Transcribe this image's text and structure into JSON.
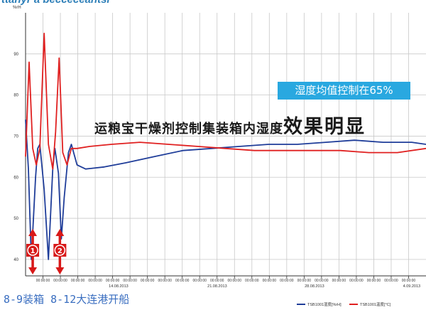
{
  "header": {
    "cut_title": "ttanyr a becceceantsr"
  },
  "annotations": {
    "callout": "湿度均值控制在65%",
    "headline_lead": "运粮宝干燥剂控制集装箱内湿度",
    "headline_strong": "效果明显",
    "bottom_note": "8-9装箱 8-12大连港开船"
  },
  "markers": [
    {
      "label": "①",
      "time": 0.5
    },
    {
      "label": "②",
      "time": 2.4
    }
  ],
  "colors": {
    "humidity": "#1f3d99",
    "temperature": "#e02020",
    "grid": "#c8c8c8",
    "callout": "#29a8e0",
    "marker": "#d81818"
  },
  "chart_data": {
    "type": "line",
    "ylabel": "%rH",
    "ylim": [
      36,
      100
    ],
    "yticks": [
      40,
      50,
      60,
      70,
      80,
      90
    ],
    "xlim": [
      0,
      28
    ],
    "grid": true,
    "legend_position": "bottom-right",
    "time_labels": [
      "00:00:00",
      "00:00:00",
      "00:00:00",
      "00:00:00",
      "00:00:00",
      "00:00:00",
      "00:00:00",
      "00:00:00",
      "00:00:00",
      "00:00:00",
      "00:00:00",
      "00:00:00",
      "00:00:00",
      "00:00:00",
      "00:00:00",
      "00:00:00",
      "00:00:00",
      "00:00:00",
      "00:00:00",
      "00:00:00",
      "00:00:00",
      "00:00:00"
    ],
    "date_labels": [
      {
        "date": "14.08.2013",
        "pos": 6.5
      },
      {
        "date": "21.08.2013",
        "pos": 13.4
      },
      {
        "date": "28.08.2013",
        "pos": 20.2
      },
      {
        "date": "4.09.2013",
        "pos": 27
      }
    ],
    "series": [
      {
        "name": "TSB1001湿度[%rH]",
        "color": "#1f3d99",
        "x": [
          0,
          0.2,
          0.4,
          0.7,
          0.85,
          1.0,
          1.3,
          1.6,
          1.9,
          2.05,
          2.3,
          2.5,
          2.7,
          3.0,
          3.2,
          3.6,
          4.2,
          5.5,
          7.0,
          9.0,
          11.0,
          13.0,
          15.0,
          17.0,
          19.0,
          21.0,
          23.0,
          25.0,
          27.0,
          28.0
        ],
        "y": [
          74,
          62,
          40,
          60,
          67,
          68,
          57,
          40,
          62,
          67,
          61,
          45,
          55,
          66,
          68,
          63,
          62,
          62.5,
          63.5,
          65,
          66.5,
          67,
          67.5,
          68,
          68,
          68.5,
          69,
          68.5,
          68.5,
          68
        ]
      },
      {
        "name": "TSB1001温度[°C]",
        "color": "#e02020",
        "x": [
          0,
          0.25,
          0.5,
          0.75,
          1.0,
          1.3,
          1.6,
          1.9,
          2.1,
          2.35,
          2.6,
          2.9,
          3.2,
          3.6,
          4.5,
          6.0,
          8.0,
          10.0,
          12.0,
          14.0,
          16.0,
          18.0,
          20.0,
          22.0,
          24.0,
          26.0,
          28.0
        ],
        "y": [
          65,
          88,
          67,
          63,
          67,
          95,
          68,
          62,
          71,
          89,
          66,
          63,
          67,
          67,
          67.5,
          68,
          68.5,
          68,
          67.5,
          67,
          66.5,
          66.5,
          66.5,
          66.5,
          66,
          66,
          67
        ]
      }
    ]
  }
}
